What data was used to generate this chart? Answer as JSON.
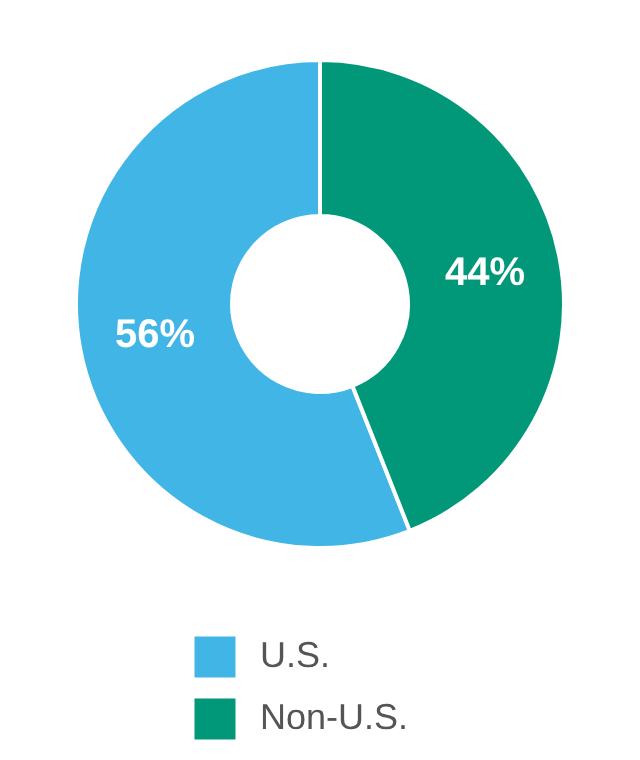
{
  "chart_data": {
    "type": "donut",
    "categories": [
      "U.S.",
      "Non-U.S."
    ],
    "values": [
      56,
      44
    ],
    "colors": [
      "#41b6e6",
      "#009878"
    ],
    "value_labels": [
      "56%",
      "44%"
    ],
    "legend": "bottom"
  }
}
